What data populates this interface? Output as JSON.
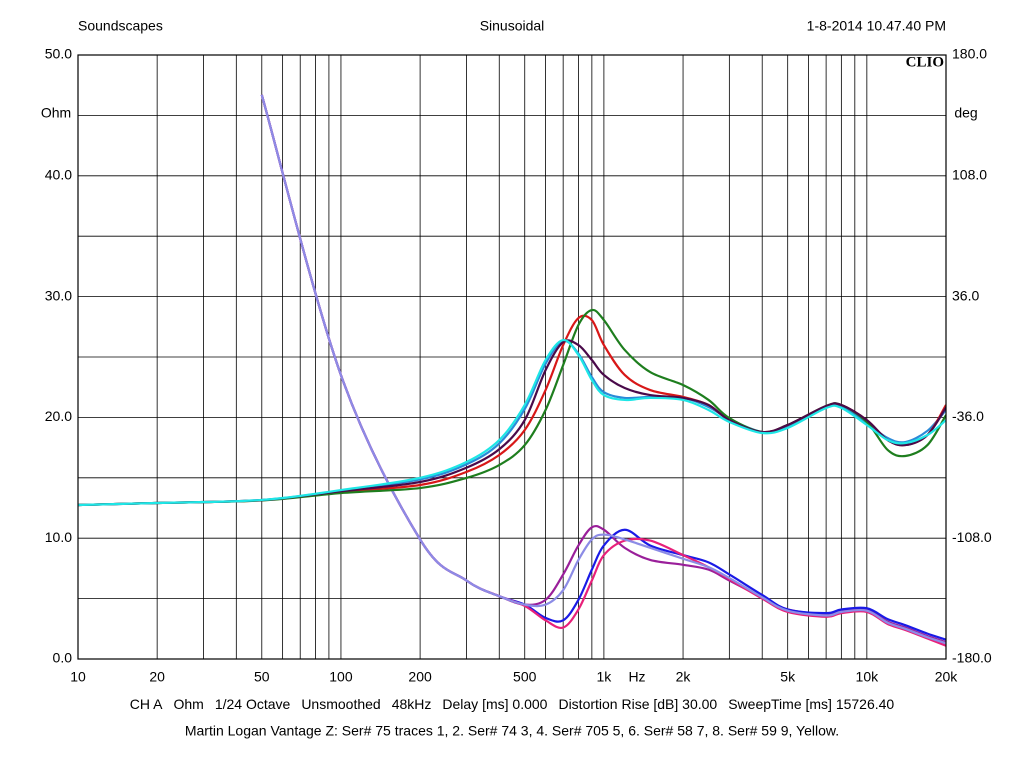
{
  "header": {
    "left": "Soundscapes",
    "center": "Sinusoidal",
    "right": "1-8-2014 10.47.40 PM",
    "brand": "CLIO"
  },
  "chart_data": {
    "type": "line",
    "xlog": true,
    "ylabel": "Ohm",
    "y2label": "deg",
    "xlabel": "Hz",
    "x": [
      10,
      20,
      50,
      100,
      200,
      300,
      400,
      500,
      600,
      700,
      800,
      900,
      1000,
      1200,
      1500,
      2000,
      2500,
      3000,
      4000,
      5000,
      7000,
      8000,
      10000,
      12000,
      14000,
      17000,
      20000
    ],
    "xlim": [
      10,
      20000
    ],
    "xticks": [
      10,
      20,
      50,
      100,
      200,
      500,
      {
        "value": 1000,
        "label": "1k"
      },
      {
        "value": 2000,
        "label": "2k"
      },
      {
        "value": 5000,
        "label": "5k"
      },
      {
        "value": 10000,
        "label": "10k"
      },
      {
        "value": 20000,
        "label": "20k"
      }
    ],
    "xgrid": [
      10,
      20,
      30,
      40,
      50,
      60,
      70,
      80,
      90,
      100,
      200,
      300,
      400,
      500,
      600,
      700,
      800,
      900,
      1000,
      2000,
      3000,
      4000,
      5000,
      6000,
      7000,
      8000,
      9000,
      10000,
      20000
    ],
    "ylim": [
      0,
      50
    ],
    "yticks": [
      {
        "value": 0,
        "label": "0.0"
      },
      {
        "value": 10,
        "label": "10.0"
      },
      {
        "value": 20,
        "label": "20.0"
      },
      {
        "value": 30,
        "label": "30.0"
      },
      {
        "value": 40,
        "label": "40.0"
      },
      {
        "value": 50,
        "label": "50.0"
      }
    ],
    "ygrid": [
      0,
      5,
      10,
      15,
      20,
      25,
      30,
      35,
      40,
      45,
      50
    ],
    "y2lim": [
      -180,
      180
    ],
    "y2ticks": [
      {
        "value": -180,
        "label": "-180.0"
      },
      {
        "value": -108,
        "label": "-108.0"
      },
      {
        "value": -36,
        "label": "-36.0"
      },
      {
        "value": 36,
        "label": "36.0"
      },
      {
        "value": 108,
        "label": "108.0"
      },
      {
        "value": 180,
        "label": "180.0"
      }
    ],
    "series": [
      {
        "color": "#9a1f9a",
        "values": [
          null,
          null,
          46.7,
          23.5,
          9.9,
          6.5,
          5.2,
          4.5,
          4.9,
          7,
          9.4,
          10.9,
          10.7,
          9.2,
          8.2,
          7.8,
          7.4,
          6.5,
          5.1,
          4.1,
          3.7,
          4,
          4.1,
          3.1,
          2.6,
          1.9,
          1.4
        ]
      },
      {
        "color": "#1a1ae6",
        "values": [
          null,
          null,
          46.7,
          23.5,
          9.9,
          6.5,
          5.2,
          4.5,
          3.4,
          3.2,
          4.9,
          7.4,
          9.4,
          10.7,
          9.4,
          8.6,
          8,
          7,
          5.3,
          4.1,
          3.8,
          4.1,
          4.2,
          3.3,
          2.8,
          2.1,
          1.6
        ]
      },
      {
        "color": "#e8207a",
        "values": [
          null,
          null,
          46.7,
          23.5,
          9.9,
          6.5,
          5.2,
          4.4,
          3.2,
          2.6,
          4.1,
          6.5,
          8.6,
          9.8,
          9.8,
          8.6,
          7.6,
          6.6,
          5,
          3.9,
          3.5,
          3.8,
          3.9,
          2.9,
          2.4,
          1.7,
          1.1
        ]
      },
      {
        "color": "#8c8ce6",
        "values": [
          null,
          null,
          46.7,
          23.5,
          9.9,
          6.5,
          5.2,
          4.5,
          4.5,
          5.7,
          8.2,
          9.9,
          10.3,
          9.9,
          9.2,
          8.3,
          7.6,
          6.7,
          5.1,
          4,
          3.6,
          3.9,
          4,
          3,
          2.5,
          1.8,
          1.3
        ]
      },
      {
        "color": "#2a8ad8",
        "axis": "y2",
        "values": [
          -88.2,
          -87,
          -85.2,
          -79.6,
          -73,
          -64,
          -51.5,
          -31,
          -4,
          9.5,
          2,
          -12,
          -21,
          -24.4,
          -23.8,
          -24.4,
          -29.8,
          -37,
          -44.7,
          -41.7,
          -29.8,
          -29.8,
          -39.4,
          -48.3,
          -50.7,
          -44,
          -31.6
        ]
      },
      {
        "color": "#d81818",
        "axis": "y2",
        "values": [
          -88.2,
          -87,
          -85.4,
          -80.5,
          -76.3,
          -68.5,
          -58.4,
          -43.5,
          -19.7,
          7.1,
          23.2,
          22,
          7.1,
          -10.7,
          -19.7,
          -23.8,
          -28.6,
          -37.6,
          -44.7,
          -40.5,
          -29.2,
          -28.6,
          -37.6,
          -49.5,
          -52.5,
          -46.5,
          -28.6
        ]
      },
      {
        "color": "#1e7e1e",
        "axis": "y2",
        "values": [
          -88.2,
          -87,
          -85.5,
          -81.1,
          -78.1,
          -72.1,
          -64.4,
          -52.5,
          -31.6,
          -4.8,
          19.1,
          28,
          22,
          4.2,
          -9,
          -16.7,
          -25.6,
          -36.4,
          -44.7,
          -40.5,
          -29.2,
          -28.6,
          -38.7,
          -55.4,
          -59,
          -52.5,
          -34.6
        ]
      },
      {
        "color": "#4a0a4a",
        "axis": "y2",
        "values": [
          -88.2,
          -87,
          -85.3,
          -80,
          -74.5,
          -66,
          -55,
          -37.6,
          -7.8,
          8.9,
          7.1,
          -1.8,
          -10.7,
          -18.5,
          -22.7,
          -24.4,
          -28.6,
          -37.6,
          -44.7,
          -40.5,
          -29.2,
          -28.6,
          -37.6,
          -49.5,
          -52.5,
          -46.5,
          -30
        ]
      },
      {
        "color": "#1ee6e6",
        "axis": "y2",
        "values": [
          -88.2,
          -87,
          -85.2,
          -79.3,
          -72,
          -62.6,
          -49.5,
          -28.6,
          -1.8,
          10.1,
          1.2,
          -13.7,
          -22.7,
          -25.6,
          -24.4,
          -25.6,
          -31.6,
          -38.7,
          -45.3,
          -42.3,
          -30.4,
          -30.4,
          -40.5,
          -49.5,
          -51.3,
          -46.5,
          -37.6
        ]
      }
    ]
  },
  "footer": {
    "settings": [
      "CH A",
      "Ohm",
      "1/24 Octave",
      "Unsmoothed",
      "48kHz",
      "Delay [ms] 0.000",
      "Distortion Rise [dB] 30.00",
      "SweepTime [ms] 15726.40"
    ],
    "caption": "Martin Logan Vantage Z: Ser# 75 traces 1, 2. Ser# 74 3, 4. Ser# 705 5, 6. Ser# 58 7, 8. Ser# 59 9, Yellow."
  }
}
